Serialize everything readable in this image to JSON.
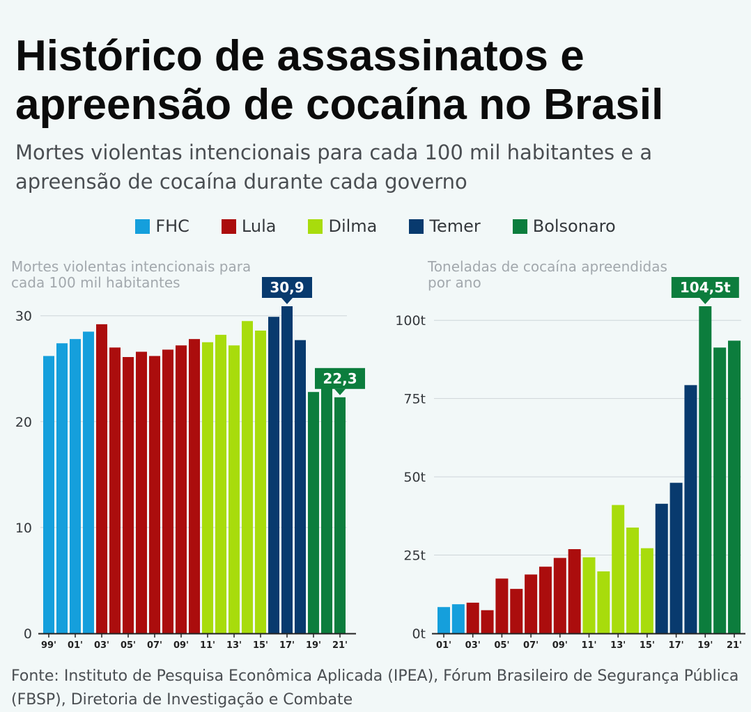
{
  "title": "Histórico de assassinatos e apreensão de cocaína no Brasil",
  "subtitle": "Mortes violentas intencionais para cada 100 mil habitantes e a apreensão de cocaína durante cada governo",
  "legend": [
    {
      "label": "FHC",
      "color": "#159fdc"
    },
    {
      "label": "Lula",
      "color": "#ab0d0d"
    },
    {
      "label": "Dilma",
      "color": "#a8dc0c"
    },
    {
      "label": "Temer",
      "color": "#083a6e"
    },
    {
      "label": "Bolsonaro",
      "color": "#0c7d3d"
    }
  ],
  "source": "Fonte: Instituto de Pesquisa Econômica Aplicada (IPEA), Fórum Brasileiro de Segurança Pública (FBSP), Diretoria de Investigação e Combate",
  "chart_data": [
    {
      "type": "bar",
      "caption": "Mortes violentas intencionais para cada 100 mil habitantes",
      "ylim": [
        0,
        30.9
      ],
      "yticks": [
        {
          "value": 0,
          "label": "0"
        },
        {
          "value": 10,
          "label": "10"
        },
        {
          "value": 20,
          "label": "20"
        },
        {
          "value": 30,
          "label": "30"
        }
      ],
      "x": [
        "99'",
        "00'",
        "01'",
        "02'",
        "03'",
        "04'",
        "05'",
        "06'",
        "07'",
        "08'",
        "09'",
        "10'",
        "11'",
        "12'",
        "13'",
        "14'",
        "15'",
        "16'",
        "17'",
        "18'",
        "19'",
        "20'",
        "21'"
      ],
      "xtick_labels": [
        "99'",
        "01'",
        "03'",
        "05'",
        "07'",
        "09'",
        "11'",
        "13'",
        "15'",
        "17'",
        "19'",
        "21'"
      ],
      "values": [
        26.2,
        27.4,
        27.8,
        28.5,
        29.2,
        27.0,
        26.1,
        26.6,
        26.2,
        26.8,
        27.2,
        27.8,
        27.5,
        28.2,
        27.2,
        29.5,
        28.6,
        29.9,
        30.9,
        27.7,
        22.8,
        23.9,
        22.3
      ],
      "governments": [
        "FHC",
        "FHC",
        "FHC",
        "FHC",
        "Lula",
        "Lula",
        "Lula",
        "Lula",
        "Lula",
        "Lula",
        "Lula",
        "Lula",
        "Dilma",
        "Dilma",
        "Dilma",
        "Dilma",
        "Dilma",
        "Temer",
        "Temer",
        "Temer",
        "Bolsonaro",
        "Bolsonaro",
        "Bolsonaro"
      ],
      "callouts": [
        {
          "index": 18,
          "label": "30,9",
          "color": "#083a6e"
        },
        {
          "index": 22,
          "label": "22,3",
          "color": "#0c7d3d"
        }
      ]
    },
    {
      "type": "bar",
      "caption": "Toneladas de cocaína apreendidas por ano",
      "ylim": [
        0,
        104.5
      ],
      "yticks": [
        {
          "value": 0,
          "label": "0t"
        },
        {
          "value": 25,
          "label": "25t"
        },
        {
          "value": 50,
          "label": "50t"
        },
        {
          "value": 75,
          "label": "75t"
        },
        {
          "value": 100,
          "label": "100t"
        }
      ],
      "x": [
        "01'",
        "02'",
        "03'",
        "04'",
        "05'",
        "06'",
        "07'",
        "08'",
        "09'",
        "10'",
        "11'",
        "12'",
        "13'",
        "14'",
        "15'",
        "16'",
        "17'",
        "18'",
        "19'",
        "20'",
        "21'"
      ],
      "xtick_labels": [
        "01'",
        "03'",
        "05'",
        "07'",
        "09'",
        "11'",
        "13'",
        "15'",
        "17'",
        "19'",
        "21'"
      ],
      "values": [
        8.4,
        9.3,
        9.8,
        7.4,
        17.5,
        14.2,
        18.8,
        21.3,
        24.1,
        26.9,
        24.3,
        19.8,
        41.0,
        33.8,
        27.2,
        41.4,
        48.1,
        79.3,
        104.5,
        91.3,
        93.5
      ],
      "governments": [
        "FHC",
        "FHC",
        "Lula",
        "Lula",
        "Lula",
        "Lula",
        "Lula",
        "Lula",
        "Lula",
        "Lula",
        "Dilma",
        "Dilma",
        "Dilma",
        "Dilma",
        "Dilma",
        "Temer",
        "Temer",
        "Temer",
        "Bolsonaro",
        "Bolsonaro",
        "Bolsonaro"
      ],
      "callouts": [
        {
          "index": 18,
          "label": "104,5t",
          "color": "#0c7d3d"
        }
      ]
    }
  ]
}
